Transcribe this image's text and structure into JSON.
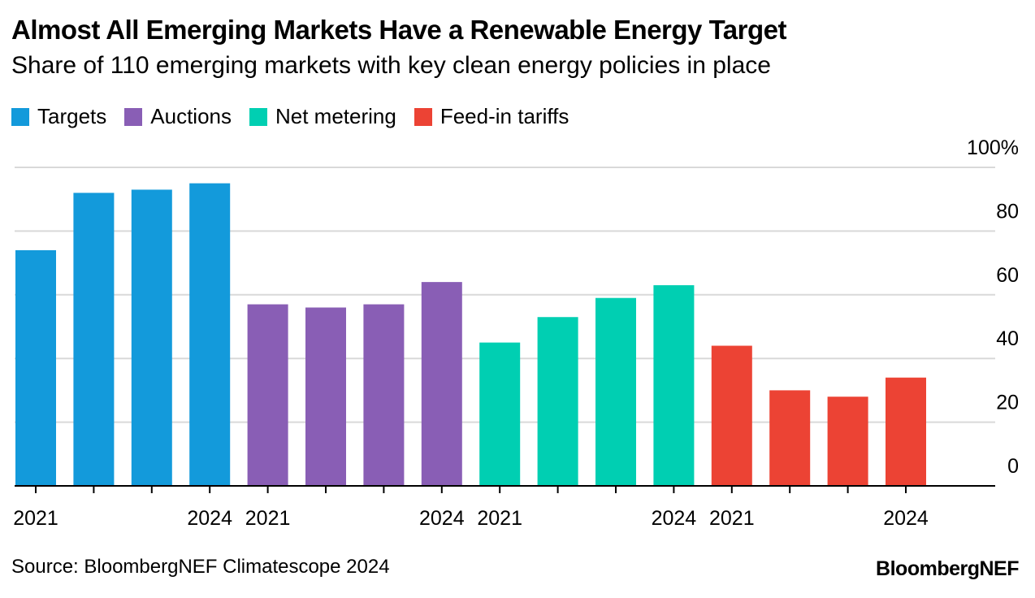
{
  "title": "Almost All Emerging Markets Have a Renewable Energy Target",
  "subtitle": "Share of 110 emerging markets with key clean energy policies in place",
  "source": "Source: BloombergNEF Climatescope 2024",
  "brand": "BloombergNEF",
  "chart_data": {
    "type": "bar",
    "y_axis": {
      "min": 0,
      "max": 100,
      "ticks": [
        0,
        20,
        40,
        60,
        80,
        100
      ],
      "tick_labels": [
        "0",
        "20",
        "40",
        "60",
        "80",
        "100%"
      ],
      "position": "right"
    },
    "grid": true,
    "legend_position": "top-left",
    "series": [
      {
        "name": "Targets",
        "color": "#139ADB",
        "x": [
          "2021",
          "2022",
          "2023",
          "2024"
        ],
        "values": [
          74,
          92,
          93,
          95
        ]
      },
      {
        "name": "Auctions",
        "color": "#895EB5",
        "x": [
          "2021",
          "2022",
          "2023",
          "2024"
        ],
        "values": [
          57,
          56,
          57,
          64
        ]
      },
      {
        "name": "Net metering",
        "color": "#00CFB2",
        "x": [
          "2021",
          "2022",
          "2023",
          "2024"
        ],
        "values": [
          45,
          53,
          59,
          63
        ]
      },
      {
        "name": "Feed-in tariffs",
        "color": "#EC4334",
        "x": [
          "2021",
          "2022",
          "2023",
          "2024"
        ],
        "values": [
          44,
          30,
          28,
          34
        ]
      }
    ],
    "x_tick_labels": [
      "2021",
      "",
      "",
      "2024",
      "2021",
      "",
      "",
      "2024",
      "2021",
      "",
      "",
      "2024",
      "2021",
      "",
      "",
      "2024"
    ]
  }
}
